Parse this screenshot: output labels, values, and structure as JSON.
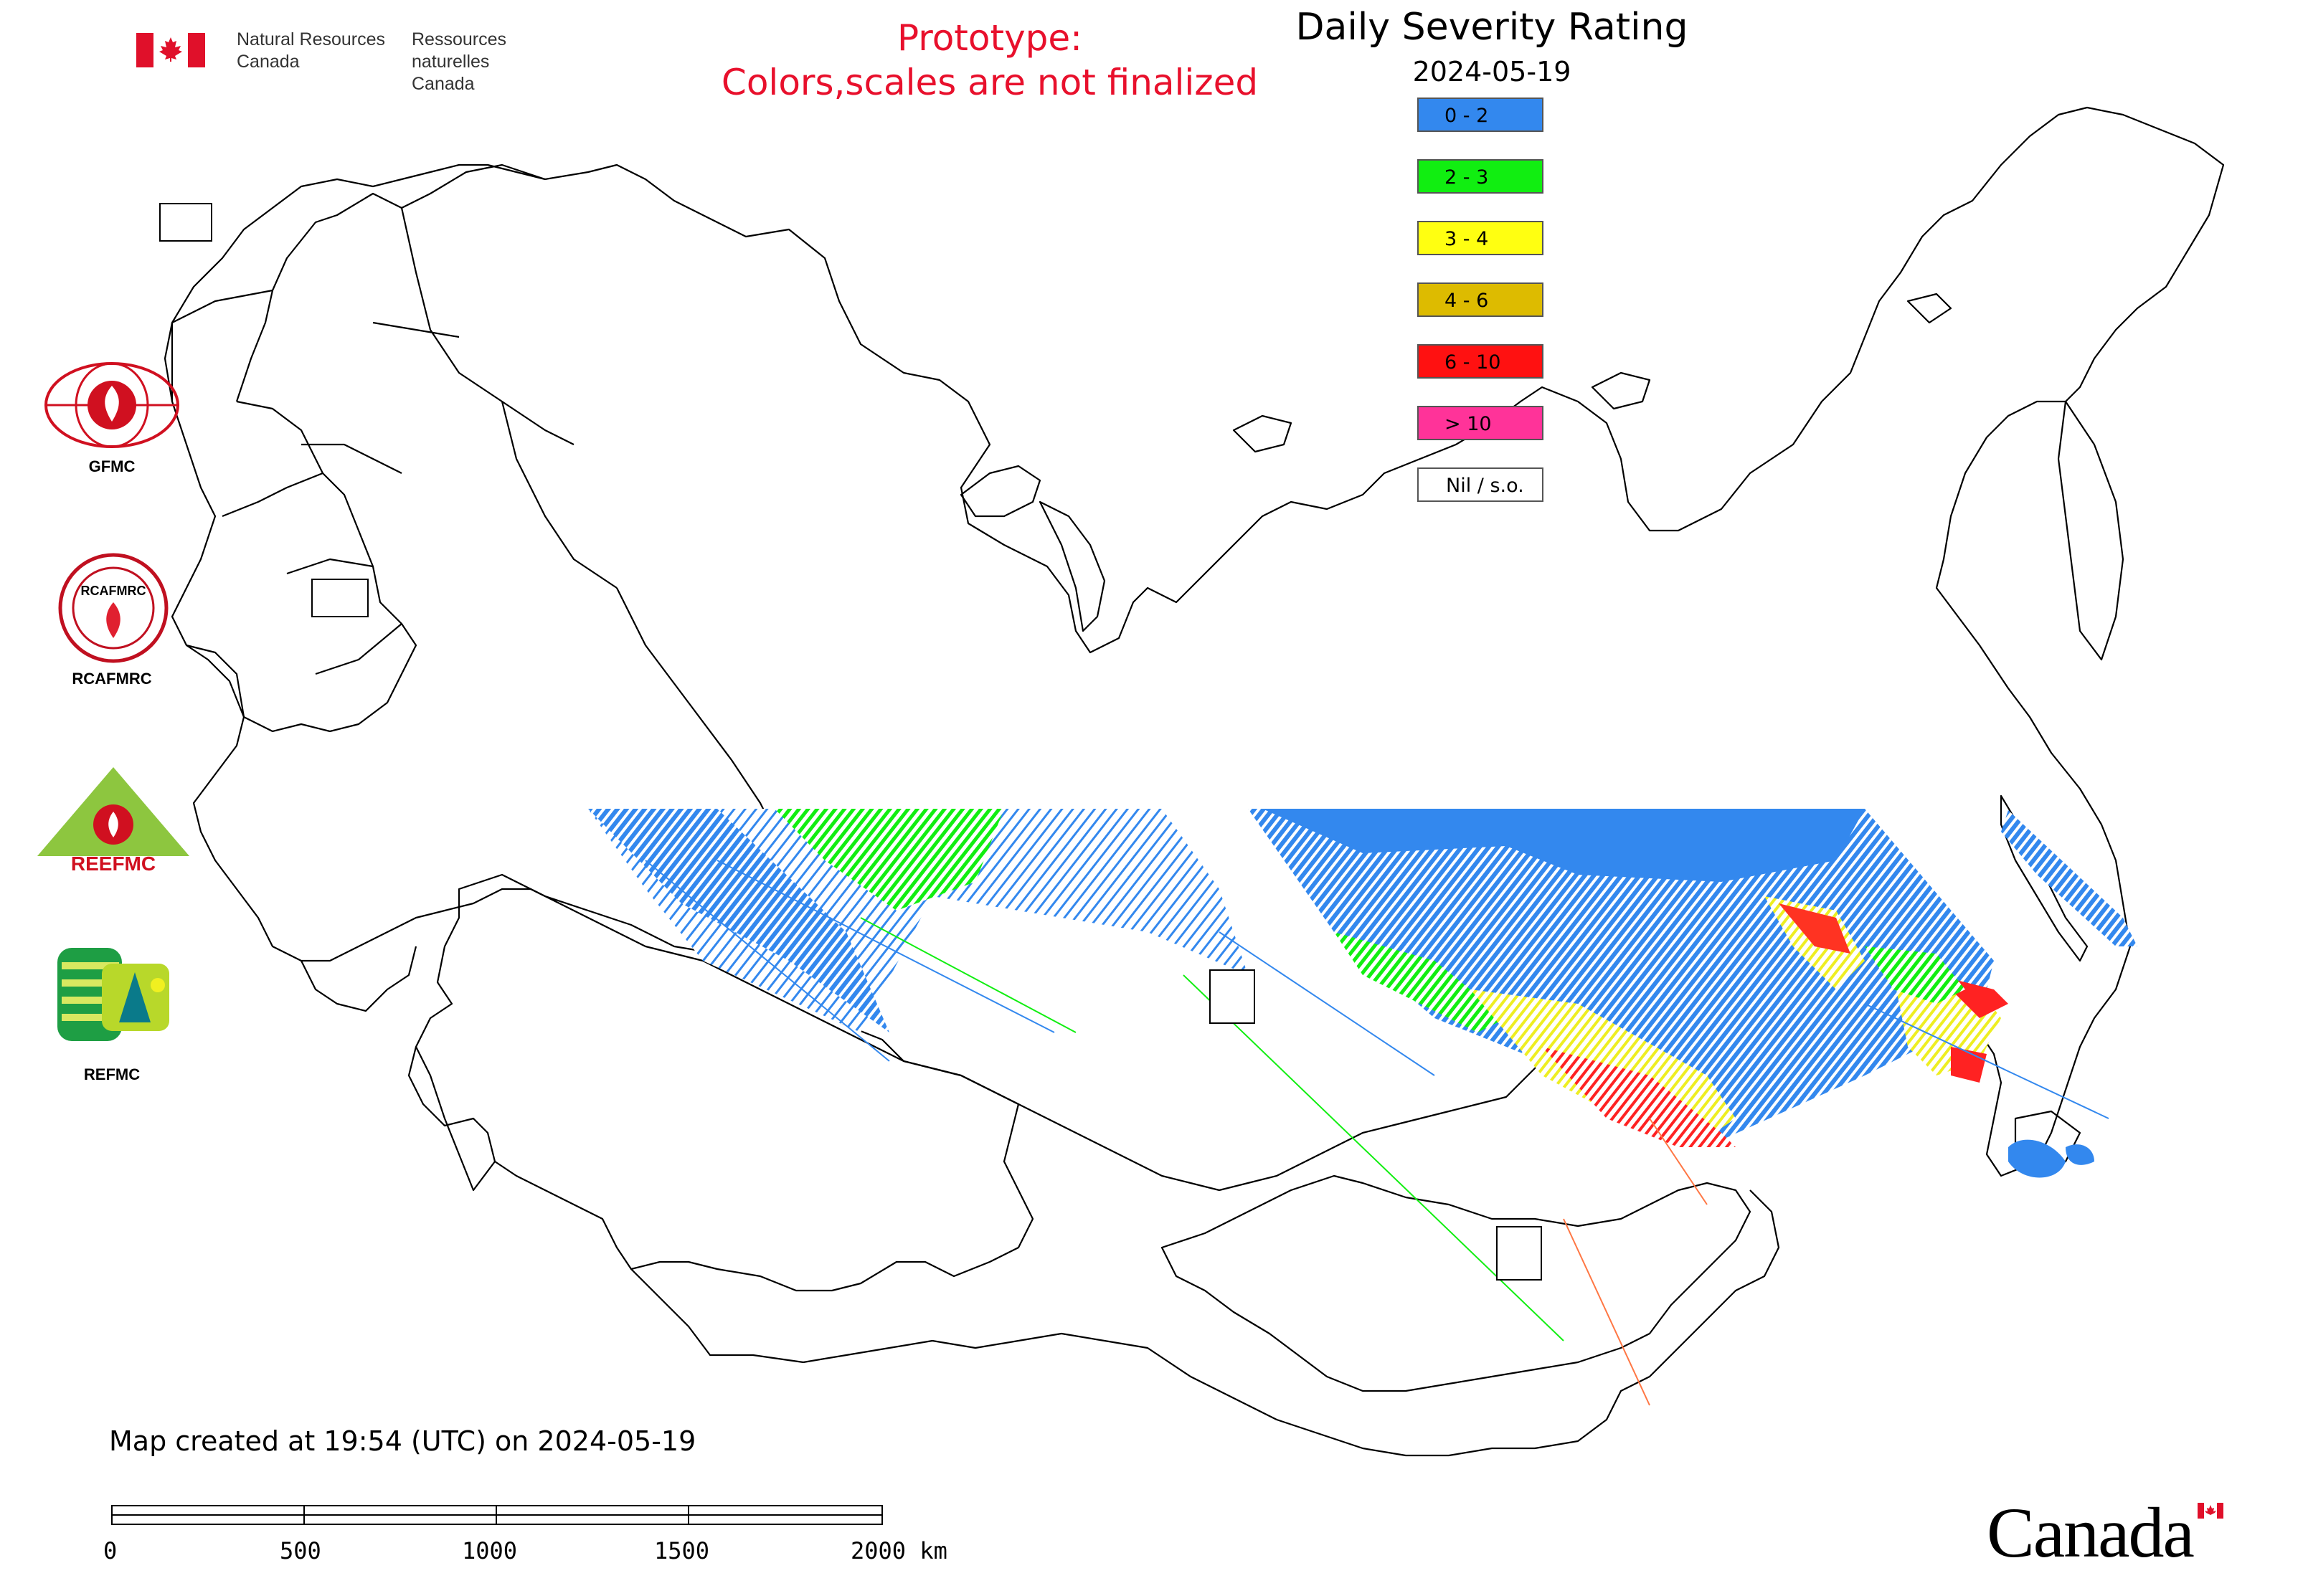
{
  "header": {
    "department_en_line1": "Natural Resources",
    "department_en_line2": "Canada",
    "department_fr_line1": "Ressources naturelles",
    "department_fr_line2": "Canada",
    "prototype_line1": "Prototype:",
    "prototype_line2": "Colors,scales are not finalized",
    "title": "Daily Severity Rating",
    "date": "2024-05-19"
  },
  "legend": {
    "items": [
      {
        "label": "0 - 2",
        "color": "#3388ee"
      },
      {
        "label": "2 - 3",
        "color": "#11ee11"
      },
      {
        "label": "3 - 4",
        "color": "#ffff11"
      },
      {
        "label": "4 - 6",
        "color": "#ddbb00"
      },
      {
        "label": "6 - 10",
        "color": "#ff1111"
      },
      {
        "label": "> 10",
        "color": "#ff3399"
      },
      {
        "label": "Nil / s.o.",
        "color": "#ffffff"
      }
    ]
  },
  "logos": {
    "gfmc": "GFMC",
    "rcafmrc": "RCAFMRC",
    "reefmc": "REEFMC",
    "refmc": "REFMC",
    "rcafmrc_badge_text": "RCAFMRC",
    "reefmc_badge_text": "REEFMC"
  },
  "colors": {
    "red_text": "#e8102c",
    "border": "#555555"
  },
  "footer": {
    "created": "Map created at 19:54 (UTC) on 2024-05-19",
    "scale_labels": [
      "0",
      "500",
      "1000",
      "1500",
      "2000 km"
    ],
    "wordmark": "Canada"
  }
}
